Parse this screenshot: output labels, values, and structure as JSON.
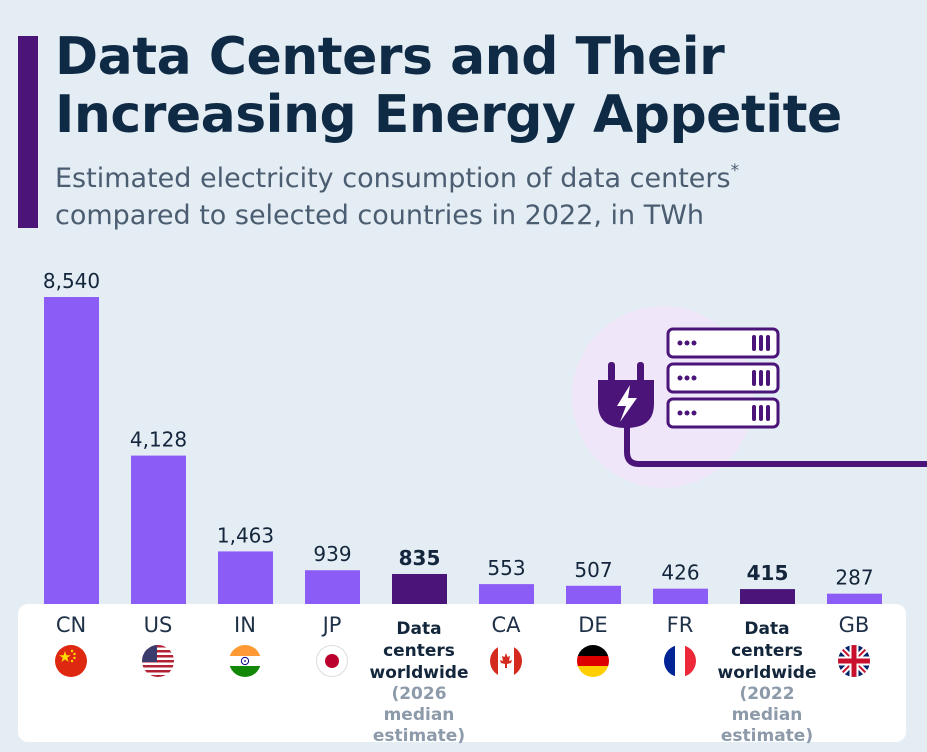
{
  "header": {
    "title_line1": "Data Centers and Their",
    "title_line2": "Increasing Energy Appetite",
    "subtitle_line1": "Estimated electricity consumption of data centers",
    "subtitle_asterisk": "*",
    "subtitle_line2": "compared to selected countries in 2022, in TWh"
  },
  "colors": {
    "country_bar": "#8b5cf6",
    "data_center_bar": "#4a1478",
    "accent": "#4a1478",
    "title": "#0f2a44"
  },
  "chart_data": {
    "type": "bar",
    "categories": [
      "CN",
      "US",
      "IN",
      "JP",
      "Data centers worldwide (2026 median estimate)",
      "CA",
      "DE",
      "FR",
      "Data centers worldwide (2022 median estimate)",
      "GB"
    ],
    "values": [
      8540,
      4128,
      1463,
      939,
      835,
      553,
      507,
      426,
      415,
      287
    ],
    "value_labels": [
      "8,540",
      "4,128",
      "1,463",
      "939",
      "835",
      "553",
      "507",
      "426",
      "415",
      "287"
    ],
    "highlight": [
      false,
      false,
      false,
      false,
      true,
      false,
      false,
      false,
      true,
      false
    ],
    "title": "Data Centers and Their Increasing Energy Appetite",
    "subtitle": "Estimated electricity consumption of data centers* compared to selected countries in 2022, in TWh",
    "xlabel": "",
    "ylabel": "",
    "ylim": [
      0,
      8540
    ],
    "grid": false,
    "legend": "none"
  },
  "labels": [
    {
      "code": "CN",
      "flag": "china-flag-icon"
    },
    {
      "code": "US",
      "flag": "usa-flag-icon"
    },
    {
      "code": "IN",
      "flag": "india-flag-icon"
    },
    {
      "code": "JP",
      "flag": "japan-flag-icon"
    },
    {
      "line1_a": "Data",
      "line1_b": "centers",
      "line1_c": "worldwide",
      "line2_a": "(2026 median",
      "line2_b": "estimate)"
    },
    {
      "code": "CA",
      "flag": "canada-flag-icon"
    },
    {
      "code": "DE",
      "flag": "germany-flag-icon"
    },
    {
      "code": "FR",
      "flag": "france-flag-icon"
    },
    {
      "line1_a": "Data",
      "line1_b": "centers",
      "line1_c": "worldwide",
      "line2_a": "(2022 median",
      "line2_b": "estimate)"
    },
    {
      "code": "GB",
      "flag": "uk-flag-icon"
    }
  ],
  "illustration": {
    "icons": [
      "power-plug-icon",
      "server-rack-icon",
      "power-cable-icon"
    ]
  }
}
